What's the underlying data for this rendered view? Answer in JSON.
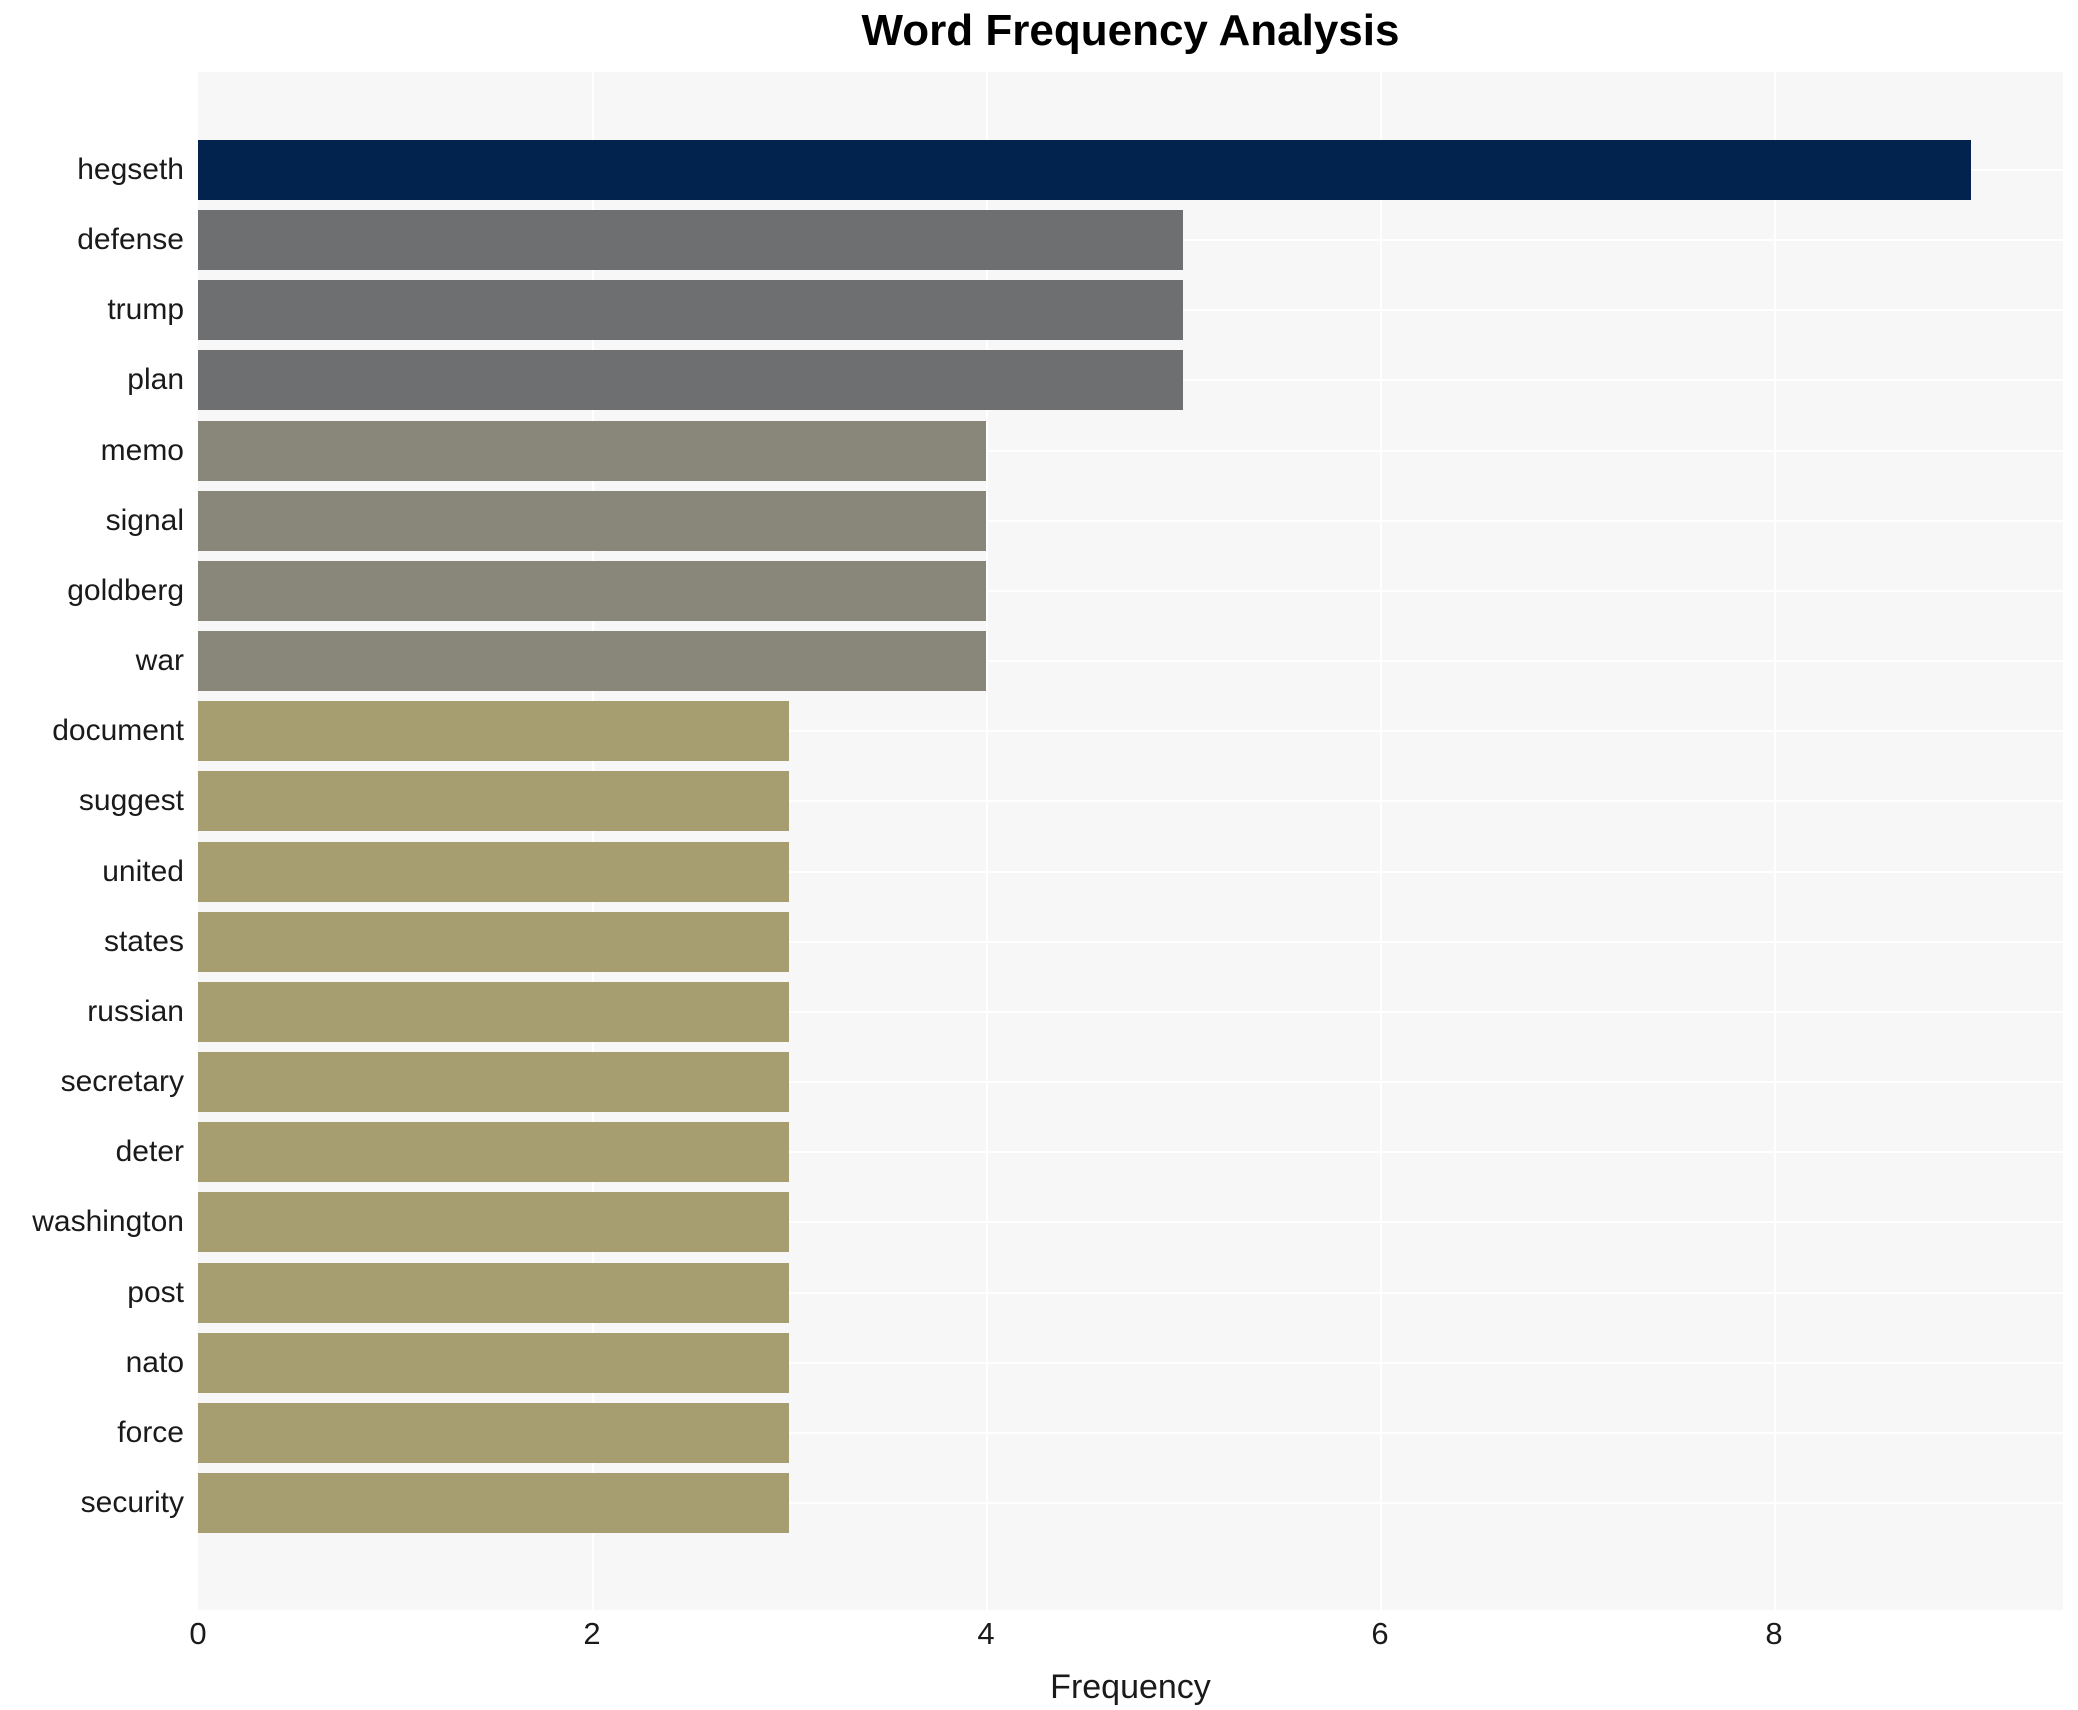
{
  "chart_data": {
    "type": "bar",
    "orientation": "horizontal",
    "title": "Word Frequency Analysis",
    "xlabel": "Frequency",
    "ylabel": "",
    "xlim": [
      0,
      9.47
    ],
    "xticks": [
      0,
      2,
      4,
      6,
      8
    ],
    "grid": true,
    "legend": "none",
    "plot_background": "#f7f7f8",
    "gridline_color": "#ffffff",
    "categories": [
      "hegseth",
      "defense",
      "trump",
      "plan",
      "memo",
      "signal",
      "goldberg",
      "war",
      "document",
      "suggest",
      "united",
      "states",
      "russian",
      "secretary",
      "deter",
      "washington",
      "post",
      "nato",
      "force",
      "security"
    ],
    "values": [
      9,
      5,
      5,
      5,
      4,
      4,
      4,
      4,
      3,
      3,
      3,
      3,
      3,
      3,
      3,
      3,
      3,
      3,
      3,
      3
    ],
    "bar_colors": [
      "#02234d",
      "#6e6f71",
      "#6e6f71",
      "#6e6f71",
      "#88877a",
      "#88877a",
      "#88877a",
      "#88877a",
      "#a69d71",
      "#a69d71",
      "#a69d71",
      "#a69d71",
      "#a69d71",
      "#a69d71",
      "#a69d71",
      "#a69d71",
      "#a69d71",
      "#a69d71",
      "#a69d71",
      "#a69d71"
    ],
    "value_color_map": {
      "9": "#02234d",
      "5": "#6e6f71",
      "4": "#88877a",
      "3": "#a69d71"
    }
  }
}
